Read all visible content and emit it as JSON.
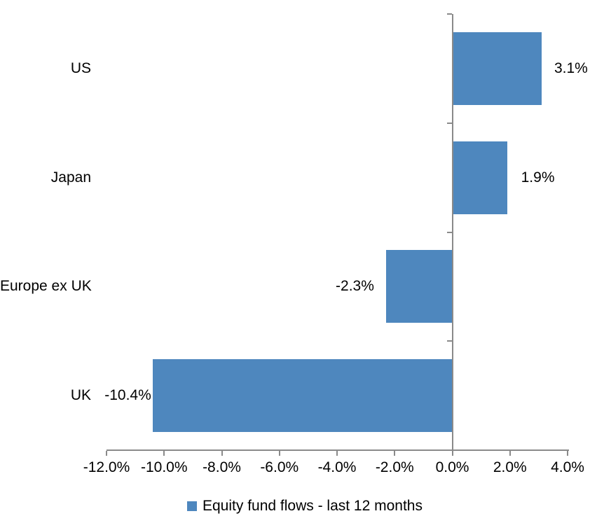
{
  "chart_data": {
    "type": "bar",
    "orientation": "horizontal",
    "title": "",
    "xlabel": "",
    "ylabel": "",
    "categories": [
      "US",
      "Japan",
      "Europe ex UK",
      "UK"
    ],
    "series": [
      {
        "name": "Equity fund flows - last 12 months",
        "values": [
          3.1,
          1.9,
          -2.3,
          -10.4
        ],
        "data_labels": [
          "3.1%",
          "1.9%",
          "-2.3%",
          "-10.4%"
        ],
        "color": "#4E87BE"
      }
    ],
    "xlim": [
      -12.0,
      4.0
    ],
    "x_ticks": [
      -12,
      -10,
      -8,
      -6,
      -4,
      -2,
      0,
      2,
      4
    ],
    "x_tick_labels": [
      "-12.0%",
      "-10.0%",
      "-8.0%",
      "-6.0%",
      "-4.0%",
      "-2.0%",
      "0.0%",
      "2.0%",
      "4.0%"
    ],
    "grid": false,
    "legend_position": "bottom",
    "axis_color": "#8A8A8A",
    "text_color": "#000000",
    "background_color": "#FFFFFF"
  }
}
